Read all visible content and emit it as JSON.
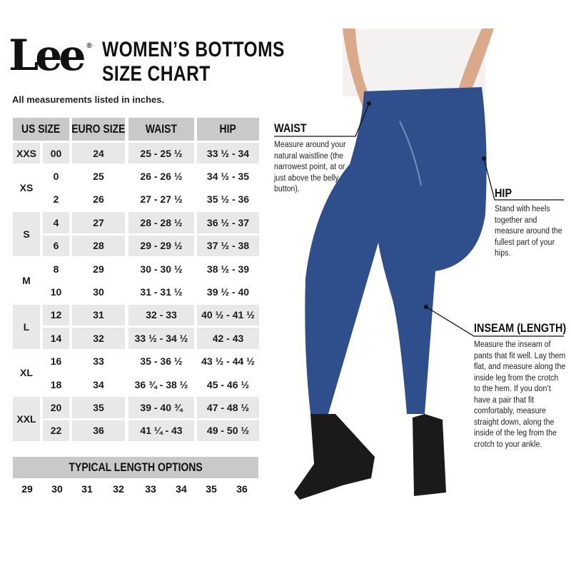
{
  "brand": {
    "logo": "Lee",
    "registered": "®"
  },
  "title": {
    "line1": "WOMEN’S BOTTOMS",
    "line2": "SIZE CHART"
  },
  "subtitle": "All measurements listed in inches.",
  "table": {
    "headers": [
      "US SIZE",
      "EURO SIZE",
      "WAIST",
      "HIP"
    ],
    "groups": [
      {
        "label": "XXS",
        "rows": [
          [
            "00",
            "24",
            "25 - 25 ½",
            "33 ½ - 34"
          ]
        ]
      },
      {
        "label": "XS",
        "rows": [
          [
            "0",
            "25",
            "26 - 26 ½",
            "34 ½ - 35"
          ],
          [
            "2",
            "26",
            "27 - 27 ½",
            "35 ½ - 36"
          ]
        ]
      },
      {
        "label": "S",
        "rows": [
          [
            "4",
            "27",
            "28 - 28 ½",
            "36 ½ - 37"
          ],
          [
            "6",
            "28",
            "29 - 29 ½",
            "37 ½ - 38"
          ]
        ]
      },
      {
        "label": "M",
        "rows": [
          [
            "8",
            "29",
            "30 - 30 ½",
            "38 ½ - 39"
          ],
          [
            "10",
            "30",
            "31 - 31 ½",
            "39 ½ - 40"
          ]
        ]
      },
      {
        "label": "L",
        "rows": [
          [
            "12",
            "31",
            "32 - 33",
            "40 ½ - 41 ½"
          ],
          [
            "14",
            "32",
            "33 ½ - 34 ½",
            "42 - 43"
          ]
        ]
      },
      {
        "label": "XL",
        "rows": [
          [
            "16",
            "33",
            "35 - 36 ½",
            "43 ½ - 44 ½"
          ],
          [
            "18",
            "34",
            "36 ¾ - 38 ½",
            "45 - 46 ½"
          ]
        ]
      },
      {
        "label": "XXL",
        "rows": [
          [
            "20",
            "35",
            "39 - 40 ¾",
            "47 - 48 ½"
          ],
          [
            "22",
            "36",
            "41 ¼ - 43",
            "49 - 50 ½"
          ]
        ]
      }
    ]
  },
  "lengths": {
    "title": "TYPICAL LENGTH OPTIONS",
    "values": [
      "29",
      "30",
      "31",
      "32",
      "33",
      "34",
      "35",
      "36"
    ]
  },
  "annotations": {
    "waist": {
      "title": "WAIST",
      "text": "Measure around your natural waistline (the narrowest point, at or just above the belly button)."
    },
    "hip": {
      "title": "HIP",
      "text": "Stand with heels together and measure around the fullest part of your hips."
    },
    "inseam": {
      "title": "INSEAM (LENGTH)",
      "text": "Measure the inseam of pants that fit well. Lay them flat, and measure along the inside leg from the crotch to the hem. If you don’t have a pair that fit comfortably, measure straight down, along the inside of the leg from the crotch to your ankle."
    }
  },
  "colors": {
    "header_gray": "#c9c9c9",
    "row_gray": "#e8e8e8",
    "denim": "#2f4f8c"
  }
}
